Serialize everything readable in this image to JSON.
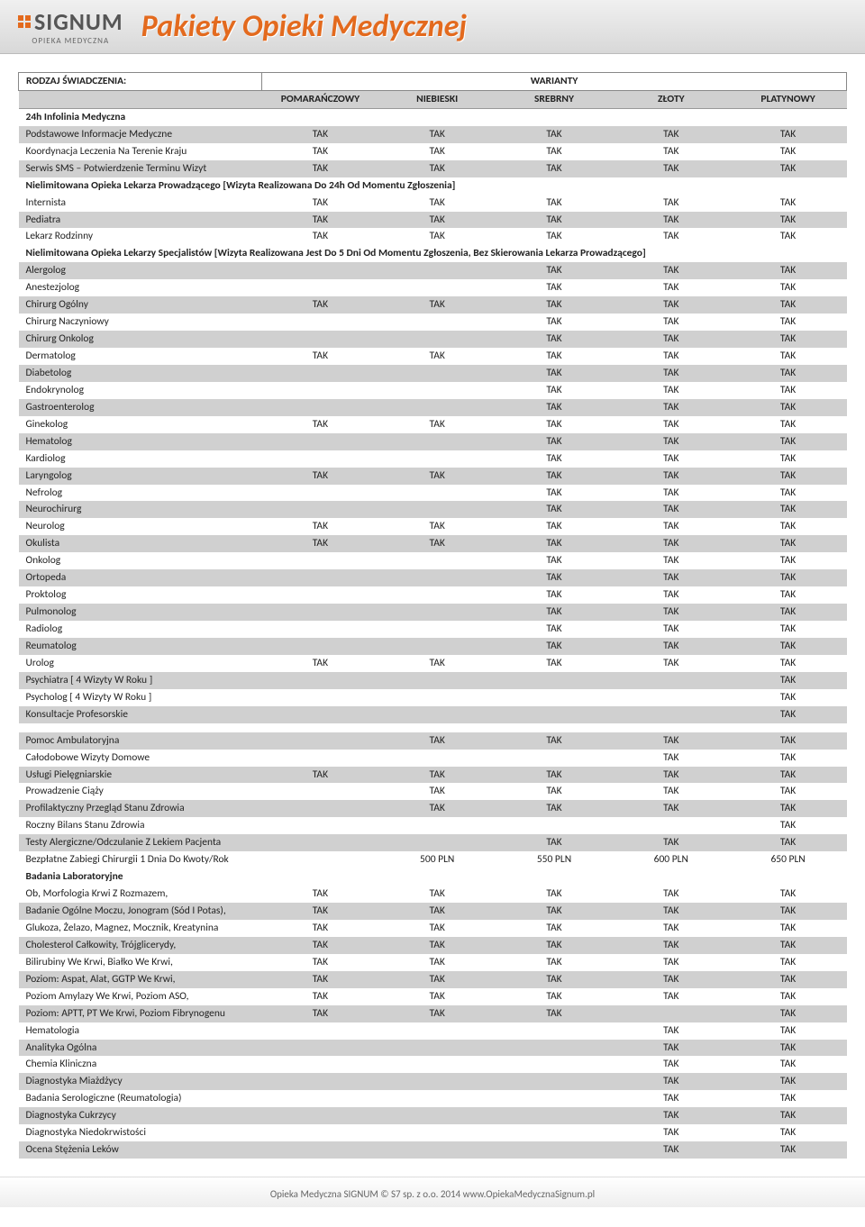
{
  "header": {
    "logo_text": "SIGNUM",
    "logo_sub": "OPIEKA MEDYCZNA",
    "title": "Pakiety Opieki Medycznej"
  },
  "table_headers": {
    "rodzaj": "RODZAJ ŚWIADCZENIA:",
    "warianty": "WARIANTY",
    "cols": [
      "POMARAŃCZOWY",
      "NIEBIESKI",
      "SREBRNY",
      "ZŁOTY",
      "PLATYNOWY"
    ]
  },
  "sections": [
    {
      "title": "24h Infolinia Medyczna",
      "rows": [
        {
          "label": "Podstawowe Informacje Medyczne",
          "v": [
            "TAK",
            "TAK",
            "TAK",
            "TAK",
            "TAK"
          ],
          "shade": true
        },
        {
          "label": "Koordynacja Leczenia Na Terenie Kraju",
          "v": [
            "TAK",
            "TAK",
            "TAK",
            "TAK",
            "TAK"
          ],
          "shade": false
        },
        {
          "label": "Serwis SMS – Potwierdzenie Terminu Wizyt",
          "v": [
            "TAK",
            "TAK",
            "TAK",
            "TAK",
            "TAK"
          ],
          "shade": true
        }
      ]
    },
    {
      "title": "Nielimitowana Opieka Lekarza Prowadzącego [Wizyta Realizowana Do 24h Od Momentu Zgłoszenia]",
      "rows": [
        {
          "label": "Internista",
          "v": [
            "TAK",
            "TAK",
            "TAK",
            "TAK",
            "TAK"
          ],
          "shade": false
        },
        {
          "label": "Pediatra",
          "v": [
            "TAK",
            "TAK",
            "TAK",
            "TAK",
            "TAK"
          ],
          "shade": true
        },
        {
          "label": "Lekarz Rodzinny",
          "v": [
            "TAK",
            "TAK",
            "TAK",
            "TAK",
            "TAK"
          ],
          "shade": false
        }
      ]
    },
    {
      "title": "Nielimitowana Opieka Lekarzy Specjalistów [Wizyta Realizowana Jest Do 5 Dni Od Momentu Zgłoszenia, Bez Skierowania Lekarza Prowadzącego]",
      "rows": [
        {
          "label": "Alergolog",
          "v": [
            "",
            "",
            "TAK",
            "TAK",
            "TAK"
          ],
          "shade": true
        },
        {
          "label": "Anestezjolog",
          "v": [
            "",
            "",
            "TAK",
            "TAK",
            "TAK"
          ],
          "shade": false
        },
        {
          "label": "Chirurg Ogólny",
          "v": [
            "TAK",
            "TAK",
            "TAK",
            "TAK",
            "TAK"
          ],
          "shade": true
        },
        {
          "label": "Chirurg Naczyniowy",
          "v": [
            "",
            "",
            "TAK",
            "TAK",
            "TAK"
          ],
          "shade": false
        },
        {
          "label": "Chirurg Onkolog",
          "v": [
            "",
            "",
            "TAK",
            "TAK",
            "TAK"
          ],
          "shade": true
        },
        {
          "label": "Dermatolog",
          "v": [
            "TAK",
            "TAK",
            "TAK",
            "TAK",
            "TAK"
          ],
          "shade": false
        },
        {
          "label": "Diabetolog",
          "v": [
            "",
            "",
            "TAK",
            "TAK",
            "TAK"
          ],
          "shade": true
        },
        {
          "label": "Endokrynolog",
          "v": [
            "",
            "",
            "TAK",
            "TAK",
            "TAK"
          ],
          "shade": false
        },
        {
          "label": "Gastroenterolog",
          "v": [
            "",
            "",
            "TAK",
            "TAK",
            "TAK"
          ],
          "shade": true
        },
        {
          "label": "Ginekolog",
          "v": [
            "TAK",
            "TAK",
            "TAK",
            "TAK",
            "TAK"
          ],
          "shade": false
        },
        {
          "label": "Hematolog",
          "v": [
            "",
            "",
            "TAK",
            "TAK",
            "TAK"
          ],
          "shade": true
        },
        {
          "label": "Kardiolog",
          "v": [
            "",
            "",
            "TAK",
            "TAK",
            "TAK"
          ],
          "shade": false
        },
        {
          "label": "Laryngolog",
          "v": [
            "TAK",
            "TAK",
            "TAK",
            "TAK",
            "TAK"
          ],
          "shade": true
        },
        {
          "label": "Nefrolog",
          "v": [
            "",
            "",
            "TAK",
            "TAK",
            "TAK"
          ],
          "shade": false
        },
        {
          "label": "Neurochirurg",
          "v": [
            "",
            "",
            "TAK",
            "TAK",
            "TAK"
          ],
          "shade": true
        },
        {
          "label": "Neurolog",
          "v": [
            "TAK",
            "TAK",
            "TAK",
            "TAK",
            "TAK"
          ],
          "shade": false
        },
        {
          "label": "Okulista",
          "v": [
            "TAK",
            "TAK",
            "TAK",
            "TAK",
            "TAK"
          ],
          "shade": true
        },
        {
          "label": "Onkolog",
          "v": [
            "",
            "",
            "TAK",
            "TAK",
            "TAK"
          ],
          "shade": false
        },
        {
          "label": "Ortopeda",
          "v": [
            "",
            "",
            "TAK",
            "TAK",
            "TAK"
          ],
          "shade": true
        },
        {
          "label": "Proktolog",
          "v": [
            "",
            "",
            "TAK",
            "TAK",
            "TAK"
          ],
          "shade": false
        },
        {
          "label": "Pulmonolog",
          "v": [
            "",
            "",
            "TAK",
            "TAK",
            "TAK"
          ],
          "shade": true
        },
        {
          "label": "Radiolog",
          "v": [
            "",
            "",
            "TAK",
            "TAK",
            "TAK"
          ],
          "shade": false
        },
        {
          "label": "Reumatolog",
          "v": [
            "",
            "",
            "TAK",
            "TAK",
            "TAK"
          ],
          "shade": true
        },
        {
          "label": "Urolog",
          "v": [
            "TAK",
            "TAK",
            "TAK",
            "TAK",
            "TAK"
          ],
          "shade": false
        },
        {
          "label": "Psychiatra [ 4 Wizyty W Roku ]",
          "v": [
            "",
            "",
            "",
            "",
            "TAK"
          ],
          "shade": true
        },
        {
          "label": "Psycholog [ 4 Wizyty W Roku ]",
          "v": [
            "",
            "",
            "",
            "",
            "TAK"
          ],
          "shade": false
        },
        {
          "label": "Konsultacje Profesorskie",
          "v": [
            "",
            "",
            "",
            "",
            "TAK"
          ],
          "shade": true
        }
      ]
    },
    {
      "title": "",
      "spacer_before": true,
      "rows": [
        {
          "label": "Pomoc Ambulatoryjna",
          "v": [
            "",
            "TAK",
            "TAK",
            "TAK",
            "TAK"
          ],
          "shade": true
        },
        {
          "label": "Całodobowe Wizyty Domowe",
          "v": [
            "",
            "",
            "",
            "TAK",
            "TAK"
          ],
          "shade": false
        },
        {
          "label": "Usługi Pielęgniarskie",
          "v": [
            "TAK",
            "TAK",
            "TAK",
            "TAK",
            "TAK"
          ],
          "shade": true
        },
        {
          "label": "Prowadzenie Ciąży",
          "v": [
            "",
            "TAK",
            "TAK",
            "TAK",
            "TAK"
          ],
          "shade": false
        },
        {
          "label": "Profilaktyczny Przegląd Stanu Zdrowia",
          "v": [
            "",
            "TAK",
            "TAK",
            "TAK",
            "TAK"
          ],
          "shade": true
        },
        {
          "label": "Roczny Bilans Stanu Zdrowia",
          "v": [
            "",
            "",
            "",
            "",
            "TAK"
          ],
          "shade": false
        },
        {
          "label": "Testy Alergiczne/Odczulanie Z Lekiem Pacjenta",
          "v": [
            "",
            "",
            "TAK",
            "TAK",
            "TAK"
          ],
          "shade": true
        },
        {
          "label": "Bezpłatne Zabiegi Chirurgii 1 Dnia Do Kwoty/Rok",
          "v": [
            "",
            "500 PLN",
            "550 PLN",
            "600 PLN",
            "650 PLN"
          ],
          "shade": false
        }
      ]
    },
    {
      "title": "Badania Laboratoryjne",
      "rows": [
        {
          "label": "Ob, Morfologia Krwi Z Rozmazem,",
          "v": [
            "TAK",
            "TAK",
            "TAK",
            "TAK",
            "TAK"
          ],
          "shade": false
        },
        {
          "label": "Badanie Ogólne Moczu, Jonogram (Sód I Potas),",
          "v": [
            "TAK",
            "TAK",
            "TAK",
            "TAK",
            "TAK"
          ],
          "shade": true
        },
        {
          "label": "Glukoza, Żelazo, Magnez, Mocznik, Kreatynina",
          "v": [
            "TAK",
            "TAK",
            "TAK",
            "TAK",
            "TAK"
          ],
          "shade": false
        },
        {
          "label": "Cholesterol Całkowity, Trójglicerydy,",
          "v": [
            "TAK",
            "TAK",
            "TAK",
            "TAK",
            "TAK"
          ],
          "shade": true
        },
        {
          "label": "Bilirubiny We Krwi, Białko We Krwi,",
          "v": [
            "TAK",
            "TAK",
            "TAK",
            "TAK",
            "TAK"
          ],
          "shade": false
        },
        {
          "label": "Poziom: Aspat, Alat, GGTP We Krwi,",
          "v": [
            "TAK",
            "TAK",
            "TAK",
            "TAK",
            "TAK"
          ],
          "shade": true
        },
        {
          "label": "Poziom Amylazy We Krwi, Poziom ASO,",
          "v": [
            "TAK",
            "TAK",
            "TAK",
            "TAK",
            "TAK"
          ],
          "shade": false
        },
        {
          "label": "Poziom: APTT, PT We Krwi, Poziom Fibrynogenu",
          "v": [
            "TAK",
            "TAK",
            "TAK",
            "",
            "TAK"
          ],
          "shade": true
        },
        {
          "label": "Hematologia",
          "v": [
            "",
            "",
            "",
            "TAK",
            "TAK"
          ],
          "shade": false
        },
        {
          "label": "Analityka Ogólna",
          "v": [
            "",
            "",
            "",
            "TAK",
            "TAK"
          ],
          "shade": true
        },
        {
          "label": "Chemia Kliniczna",
          "v": [
            "",
            "",
            "",
            "TAK",
            "TAK"
          ],
          "shade": false
        },
        {
          "label": "Diagnostyka Miażdżycy",
          "v": [
            "",
            "",
            "",
            "TAK",
            "TAK"
          ],
          "shade": true
        },
        {
          "label": "Badania Serologiczne (Reumatologia)",
          "v": [
            "",
            "",
            "",
            "TAK",
            "TAK"
          ],
          "shade": false
        },
        {
          "label": "Diagnostyka Cukrzycy",
          "v": [
            "",
            "",
            "",
            "TAK",
            "TAK"
          ],
          "shade": true
        },
        {
          "label": "Diagnostyka Niedokrwistości",
          "v": [
            "",
            "",
            "",
            "TAK",
            "TAK"
          ],
          "shade": false
        },
        {
          "label": "Ocena Stężenia Leków",
          "v": [
            "",
            "",
            "",
            "TAK",
            "TAK"
          ],
          "shade": true
        }
      ]
    }
  ],
  "footer": "Opieka Medyczna SIGNUM © S7 sp. z o.o. 2014 www.OpiekaMedycznaSignum.pl"
}
